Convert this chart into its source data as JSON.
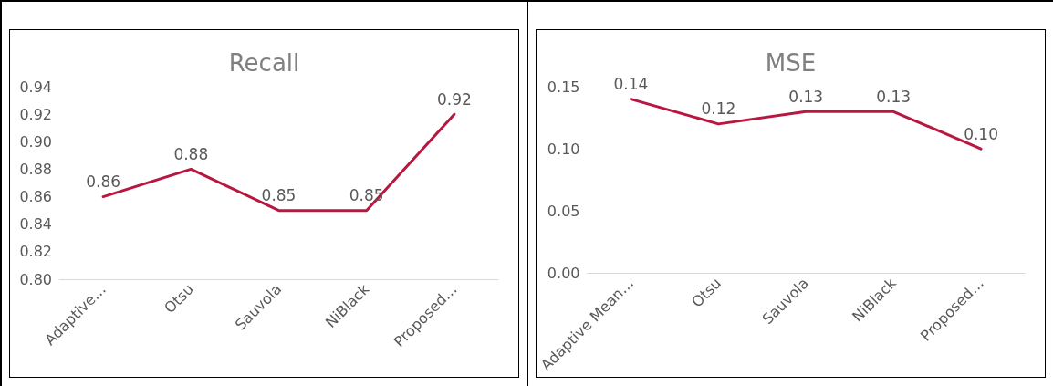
{
  "chart_data": [
    {
      "type": "line",
      "title": "Recall",
      "categories": [
        "Adaptive…",
        "Otsu",
        "Sauvola",
        "NiBlack",
        "Proposed…"
      ],
      "series": [
        {
          "color": "#b8173f",
          "values": [
            0.86,
            0.88,
            0.85,
            0.85,
            0.92
          ],
          "value_labels": [
            "0.86",
            "0.88",
            "0.85",
            "0.85",
            "0.92"
          ]
        }
      ],
      "ylim": [
        0.8,
        0.94
      ],
      "yticks": [
        {
          "value": 0.8,
          "label": "0.80"
        },
        {
          "value": 0.82,
          "label": "0.82"
        },
        {
          "value": 0.84,
          "label": "0.84"
        },
        {
          "value": 0.86,
          "label": "0.86"
        },
        {
          "value": 0.88,
          "label": "0.88"
        },
        {
          "value": 0.9,
          "label": "0.90"
        },
        {
          "value": 0.92,
          "label": "0.92"
        },
        {
          "value": 0.94,
          "label": "0.94"
        }
      ],
      "grid": false,
      "marker": "none",
      "line_style": "solid"
    },
    {
      "type": "line",
      "title": "MSE",
      "categories": [
        "Adaptive Mean…",
        "Otsu",
        "Sauvola",
        "NiBlack",
        "Proposed…"
      ],
      "series": [
        {
          "color": "#b8173f",
          "values": [
            0.14,
            0.12,
            0.13,
            0.13,
            0.1
          ],
          "value_labels": [
            "0.14",
            "0.12",
            "0.13",
            "0.13",
            "0.10"
          ]
        }
      ],
      "ylim": [
        0,
        0.15
      ],
      "yticks": [
        {
          "value": 0,
          "label": "0.00"
        },
        {
          "value": 0.05,
          "label": "0.05"
        },
        {
          "value": 0.1,
          "label": "0.10"
        },
        {
          "value": 0.15,
          "label": "0.15"
        }
      ],
      "grid": false,
      "marker": "none",
      "line_style": "solid"
    }
  ]
}
